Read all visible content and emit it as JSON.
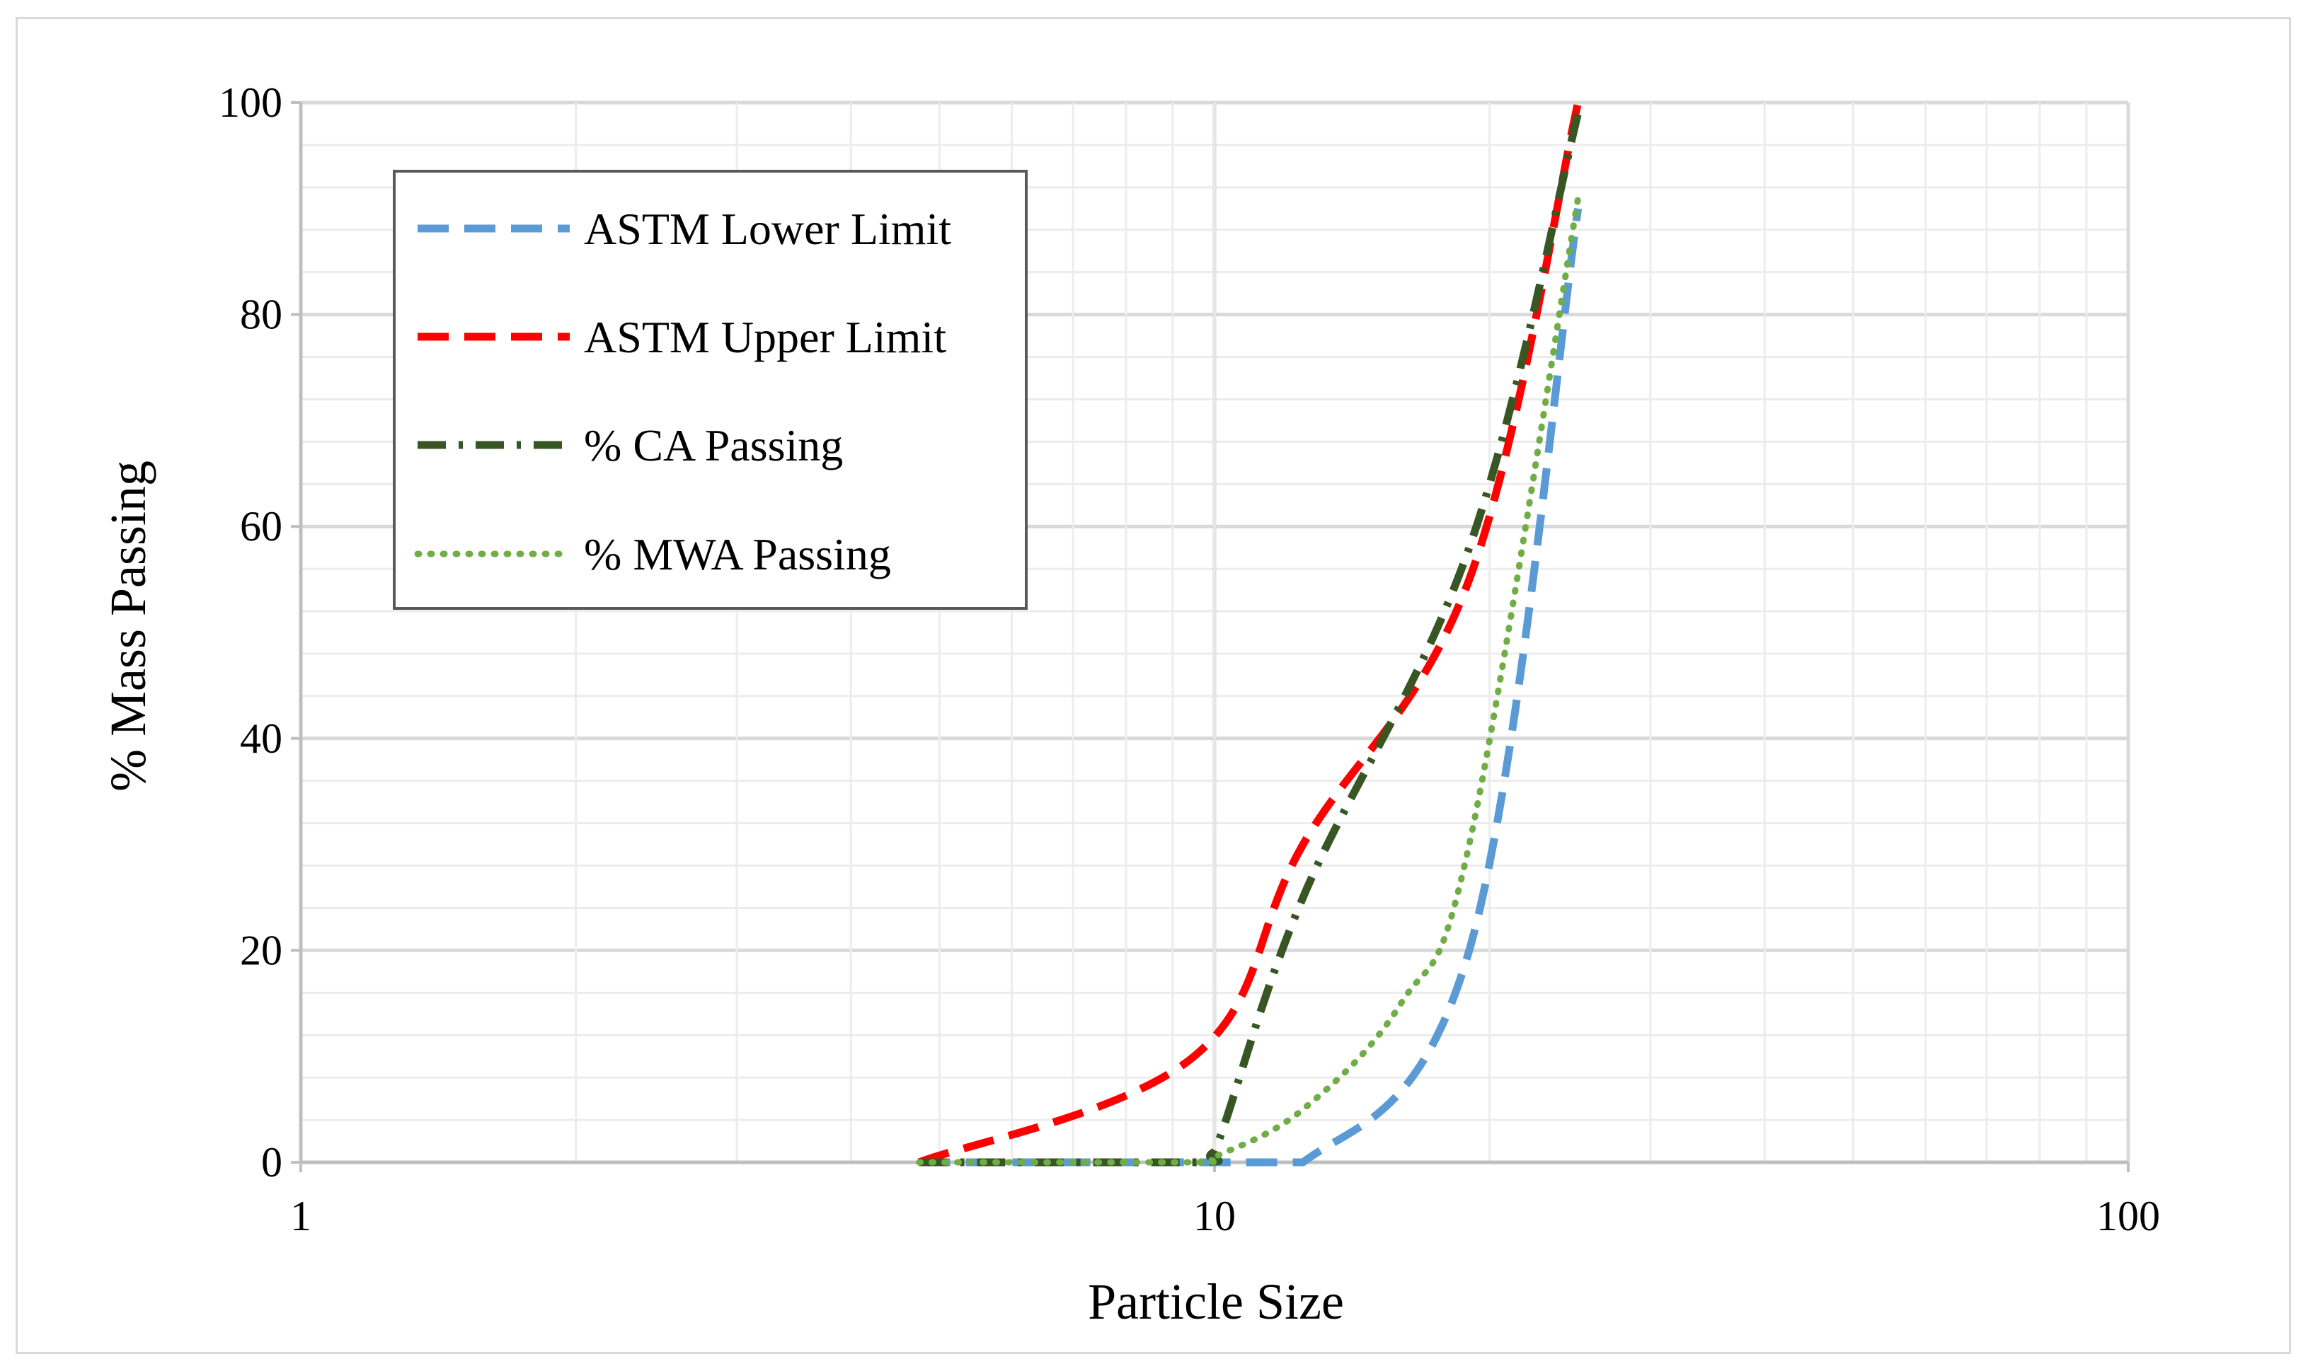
{
  "chart_data": {
    "type": "line",
    "title": "",
    "xlabel": "Particle Size",
    "ylabel": "% Mass Passing",
    "xscale": "log",
    "xlim": [
      1,
      100
    ],
    "ylim": [
      0,
      100
    ],
    "x_ticks": [
      "1",
      "10",
      "100"
    ],
    "y_ticks": [
      "0",
      "20",
      "40",
      "60",
      "80",
      "100"
    ],
    "grid": true,
    "legend_position": "top-left",
    "series": [
      {
        "name": "ASTM Lower Limit",
        "color": "#5b9bd5",
        "style": "dashed",
        "x": [
          4.75,
          9.5,
          12.5,
          19,
          25
        ],
        "y": [
          0,
          0,
          0,
          20,
          90
        ]
      },
      {
        "name": "ASTM Upper Limit",
        "color": "#ff0000",
        "style": "dashed",
        "x": [
          4.75,
          9.5,
          12.5,
          19,
          25
        ],
        "y": [
          0,
          10,
          30,
          55,
          100
        ]
      },
      {
        "name": "% CA Passing",
        "color": "#375623",
        "style": "dash-dot",
        "x": [
          4.75,
          9.5,
          10,
          12.5,
          19,
          25
        ],
        "y": [
          0,
          0,
          1,
          25,
          58,
          99
        ]
      },
      {
        "name": "% MWA Passing",
        "color": "#70ad47",
        "style": "dotted",
        "x": [
          4.75,
          9.5,
          10,
          12.5,
          16,
          19,
          25
        ],
        "y": [
          0,
          0,
          0.5,
          5,
          15,
          30,
          91
        ]
      }
    ]
  }
}
